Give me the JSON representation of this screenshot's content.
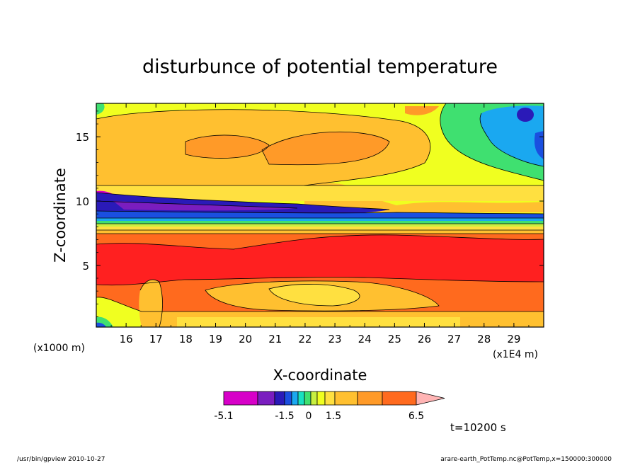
{
  "chart_data": {
    "type": "heatmap",
    "title": "disturbunce of potential temperature",
    "xlabel": "X-coordinate",
    "ylabel": "Z-coordinate",
    "x_unit_left": "(x1000 m)",
    "x_unit_right": "(x1E4 m)",
    "x_ticks": [
      "16",
      "17",
      "18",
      "19",
      "20",
      "21",
      "22",
      "23",
      "24",
      "25",
      "26",
      "27",
      "28",
      "29"
    ],
    "y_ticks": [
      "5",
      "10",
      "15"
    ],
    "xlim": [
      15,
      30
    ],
    "ylim": [
      0.2,
      17.6
    ],
    "grid": false,
    "time_label": "t=10200 s",
    "colorbar": {
      "levels_labeled": [
        "-5.1",
        "-1.5",
        "0",
        "1.5",
        "6.5"
      ],
      "colors": [
        "#d700c8",
        "#7a1dbf",
        "#2a1ab8",
        "#1a4fe0",
        "#1aa8f0",
        "#19e0c0",
        "#3fe070",
        "#c8f040",
        "#f0ff20",
        "#ffe040",
        "#ffc030",
        "#ff9a28",
        "#ff6a1e",
        "#ff2020",
        "#ff7070",
        "#ffb4b4"
      ],
      "overflow": "triangle-right"
    },
    "bands": [
      {
        "z_range": [
          0.2,
          1.0
        ],
        "level": "1.5 to 3",
        "color": "#ffc030"
      },
      {
        "z_range": [
          1.0,
          4.0
        ],
        "level": "3 to 4",
        "color": "#ff9a28"
      },
      {
        "z_range": [
          4.0,
          7.5
        ],
        "level": "4 to 5.5",
        "color": "#ff2020"
      },
      {
        "z_range": [
          7.5,
          8.5
        ],
        "level": "1.5 to 4",
        "color": "#ff6a1e"
      },
      {
        "z_range": [
          8.5,
          10.5
        ],
        "level": "-5.1 to -1.5",
        "color": "#2a1ab8"
      },
      {
        "z_range": [
          10.5,
          15.0
        ],
        "level": "1.5 to 3",
        "color": "#ff9a28"
      },
      {
        "z_range": [
          15.0,
          17.6
        ],
        "level": "0 to 1.5",
        "color": "#f0ff20"
      }
    ]
  },
  "footer": {
    "left": "/usr/bin/gpview   2010-10-27",
    "right": "arare-earth_PotTemp.nc@PotTemp,x=150000:300000"
  }
}
